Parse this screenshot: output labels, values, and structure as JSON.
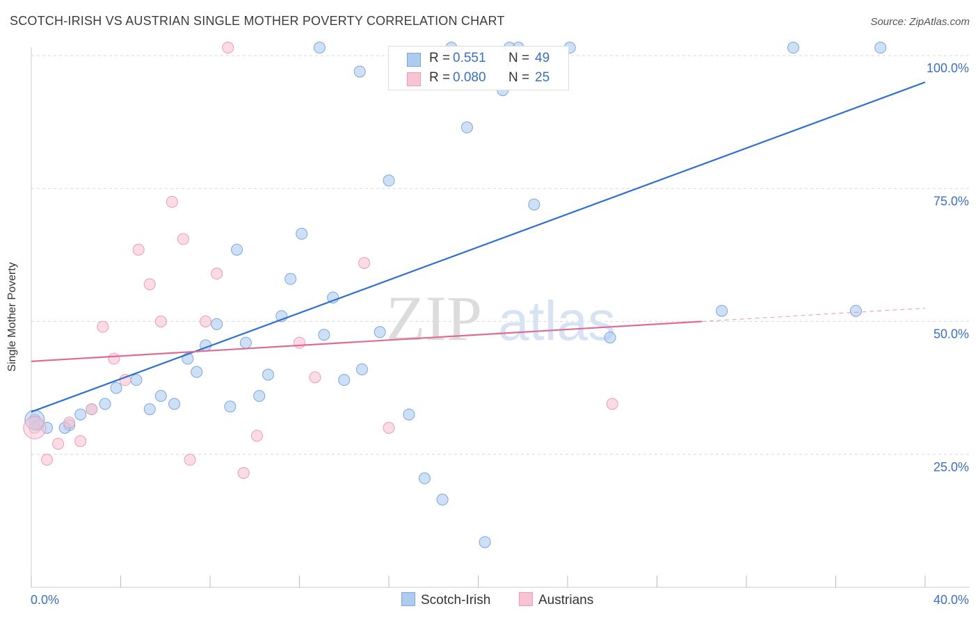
{
  "header": {
    "title": "SCOTCH-IRISH VS AUSTRIAN SINGLE MOTHER POVERTY CORRELATION CHART",
    "source": "Source: ZipAtlas.com"
  },
  "watermark": {
    "part1": "ZIP",
    "part2": "atlas"
  },
  "legend_stats": [
    {
      "r_label": "R = ",
      "r_value": "0.551",
      "n_label": "N = ",
      "n_value": "49",
      "color": "#aecbf0"
    },
    {
      "r_label": "R = ",
      "r_value": "0.080",
      "n_label": "N = ",
      "n_value": "25",
      "color": "#f8c4d2"
    }
  ],
  "chart_data": {
    "type": "scatter",
    "title": "SCOTCH-IRISH VS AUSTRIAN SINGLE MOTHER POVERTY CORRELATION CHART",
    "xlabel": "",
    "ylabel": "Single Mother Poverty",
    "xlim": [
      0,
      40
    ],
    "ylim": [
      0,
      104
    ],
    "x_tick_labels": [
      "0.0%",
      "40.0%"
    ],
    "y_ticks": [
      25,
      50,
      75,
      100
    ],
    "y_tick_labels": [
      "25.0%",
      "50.0%",
      "75.0%",
      "100.0%"
    ],
    "grid": true,
    "legend_position": "bottom",
    "series": [
      {
        "name": "Scotch-Irish",
        "color": "#aecbf0",
        "stroke": "#7ba6dd",
        "trend_color": "#2f6fd0",
        "points": [
          [
            0.15,
            31.5
          ],
          [
            0.7,
            30.0
          ],
          [
            1.7,
            30.5
          ],
          [
            2.2,
            32.5
          ],
          [
            2.7,
            33.5
          ],
          [
            3.3,
            34.5
          ],
          [
            3.8,
            37.5
          ],
          [
            4.7,
            39.0
          ],
          [
            5.3,
            33.5
          ],
          [
            5.8,
            36.0
          ],
          [
            6.4,
            34.5
          ],
          [
            7.0,
            43.0
          ],
          [
            7.4,
            40.5
          ],
          [
            7.8,
            45.5
          ],
          [
            8.3,
            49.5
          ],
          [
            8.9,
            34.0
          ],
          [
            9.2,
            63.5
          ],
          [
            9.6,
            46.0
          ],
          [
            10.2,
            36.0
          ],
          [
            10.6,
            40.0
          ],
          [
            11.2,
            51.0
          ],
          [
            11.6,
            58.0
          ],
          [
            12.1,
            66.5
          ],
          [
            13.1,
            47.5
          ],
          [
            13.5,
            54.5
          ],
          [
            14.0,
            39.0
          ],
          [
            14.8,
            41.0
          ],
          [
            15.6,
            48.0
          ],
          [
            16.0,
            76.5
          ],
          [
            16.9,
            32.5
          ],
          [
            17.6,
            20.5
          ],
          [
            18.4,
            16.5
          ],
          [
            19.5,
            86.5
          ],
          [
            20.3,
            8.5
          ],
          [
            21.1,
            93.5
          ],
          [
            22.5,
            72.0
          ],
          [
            12.9,
            101.5
          ],
          [
            14.7,
            97.0
          ],
          [
            18.8,
            101.5
          ],
          [
            21.4,
            101.5
          ],
          [
            21.8,
            101.5
          ],
          [
            24.1,
            101.5
          ],
          [
            25.9,
            47.0
          ],
          [
            30.9,
            52.0
          ],
          [
            34.1,
            101.5
          ],
          [
            36.9,
            52.0
          ],
          [
            38.0,
            101.5
          ],
          [
            0.3,
            30.5
          ],
          [
            1.5,
            30.0
          ]
        ],
        "trend": {
          "x": [
            0,
            40
          ],
          "y": [
            33.0,
            95.0
          ]
        }
      },
      {
        "name": "Austrians",
        "color": "#f8c4d2",
        "stroke": "#ee9ab4",
        "trend_color": "#e06a94",
        "points": [
          [
            0.15,
            30.0
          ],
          [
            0.7,
            24.0
          ],
          [
            1.2,
            27.0
          ],
          [
            1.7,
            31.0
          ],
          [
            2.2,
            27.5
          ],
          [
            2.7,
            33.5
          ],
          [
            3.2,
            49.0
          ],
          [
            3.7,
            43.0
          ],
          [
            4.2,
            39.0
          ],
          [
            4.8,
            63.5
          ],
          [
            5.3,
            57.0
          ],
          [
            5.8,
            50.0
          ],
          [
            6.3,
            72.5
          ],
          [
            6.8,
            65.5
          ],
          [
            7.1,
            24.0
          ],
          [
            7.8,
            50.0
          ],
          [
            8.3,
            59.0
          ],
          [
            8.8,
            101.5
          ],
          [
            9.5,
            21.5
          ],
          [
            10.1,
            28.5
          ],
          [
            12.0,
            46.0
          ],
          [
            12.7,
            39.5
          ],
          [
            14.9,
            61.0
          ],
          [
            16.0,
            30.0
          ],
          [
            26.0,
            34.5
          ]
        ],
        "trend": {
          "x": [
            0,
            30.0
          ],
          "y": [
            42.5,
            50.0
          ]
        },
        "trend_dashed": {
          "x": [
            30.0,
            40
          ],
          "y": [
            50.0,
            52.5
          ]
        }
      }
    ]
  }
}
